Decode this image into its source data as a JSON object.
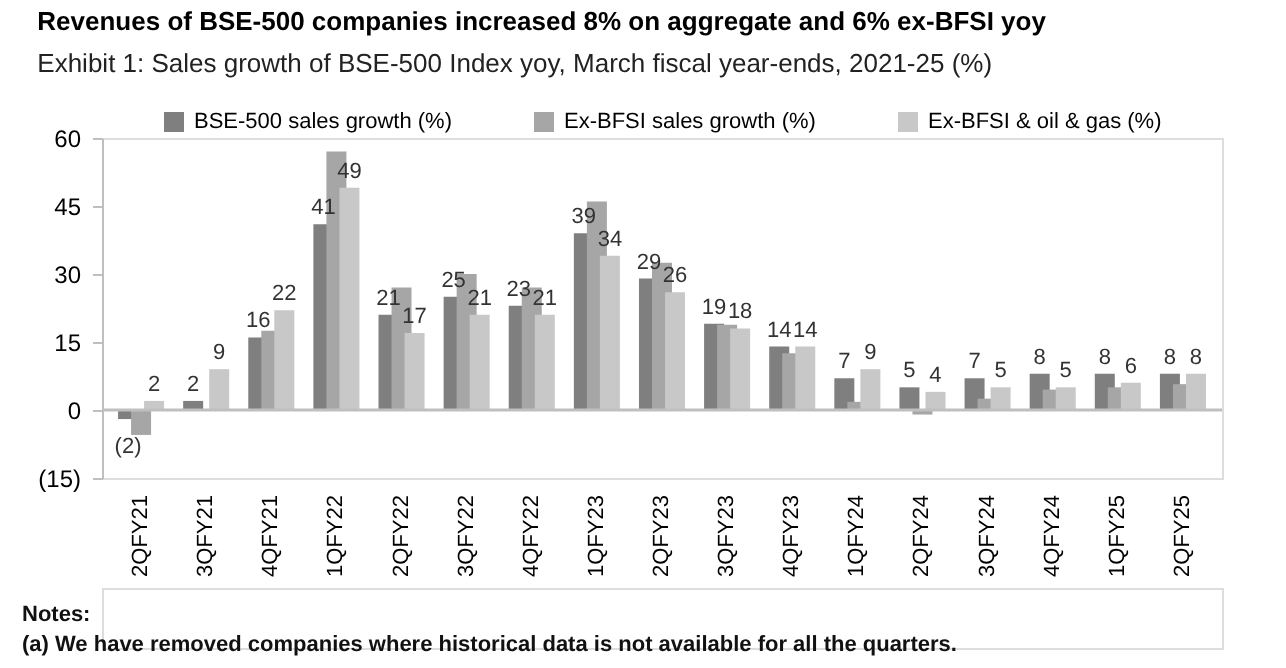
{
  "chart_data": {
    "type": "bar",
    "title": "Revenues of BSE-500 companies increased 8% on aggregate and 6% ex-BFSI yoy",
    "subtitle": "Exhibit 1: Sales growth of BSE-500 Index yoy, March fiscal year-ends, 2021-25 (%)",
    "categories": [
      "2QFY21",
      "3QFY21",
      "4QFY21",
      "1QFY22",
      "2QFY22",
      "3QFY22",
      "4QFY22",
      "1QFY23",
      "2QFY23",
      "3QFY23",
      "4QFY23",
      "1QFY24",
      "2QFY24",
      "3QFY24",
      "4QFY24",
      "1QFY25",
      "2QFY25"
    ],
    "series": [
      {
        "name": "BSE-500 sales growth (%)",
        "color": "#7f7f7f",
        "values": [
          -2,
          2,
          16,
          41,
          21,
          25,
          23,
          39,
          29,
          19,
          14,
          7,
          5,
          7,
          8,
          8,
          8
        ],
        "value_labels": [
          "(2)",
          "2",
          "16",
          "41",
          "21",
          "25",
          "23",
          "39",
          "29",
          "19",
          "14",
          "7",
          "5",
          "7",
          "8",
          "8",
          "8"
        ]
      },
      {
        "name": "Ex-BFSI sales growth (%)",
        "color": "#a6a6a6",
        "values": [
          -5.5,
          null,
          17.5,
          57,
          27,
          30,
          27,
          46,
          32.5,
          18.8,
          12.5,
          1.8,
          -1,
          2.5,
          4.5,
          5,
          5.7
        ]
      },
      {
        "name": "Ex-BFSI & oil & gas (%)",
        "color": "#c8c8c8",
        "values": [
          2,
          9,
          22,
          49,
          17,
          21,
          21,
          34,
          26,
          18,
          14,
          9,
          4,
          5,
          5,
          6,
          8
        ],
        "value_labels": [
          "2",
          "9",
          "22",
          "49",
          "17",
          "21",
          "21",
          "34",
          "26",
          "18",
          "14",
          "9",
          "4",
          "5",
          "5",
          "6",
          "8"
        ]
      }
    ],
    "ylim": [
      -15,
      60
    ],
    "yticks": [
      {
        "value": -15,
        "label": "(15)"
      },
      0,
      15,
      30,
      45,
      60
    ],
    "ref_lines": [
      {
        "axis": "y",
        "value": 0,
        "color": "#bfbfbf"
      }
    ],
    "legend": "top",
    "grid": false,
    "annotations": [
      "Notes:",
      "(a) We have removed companies where historical data is not available for all the quarters."
    ]
  }
}
